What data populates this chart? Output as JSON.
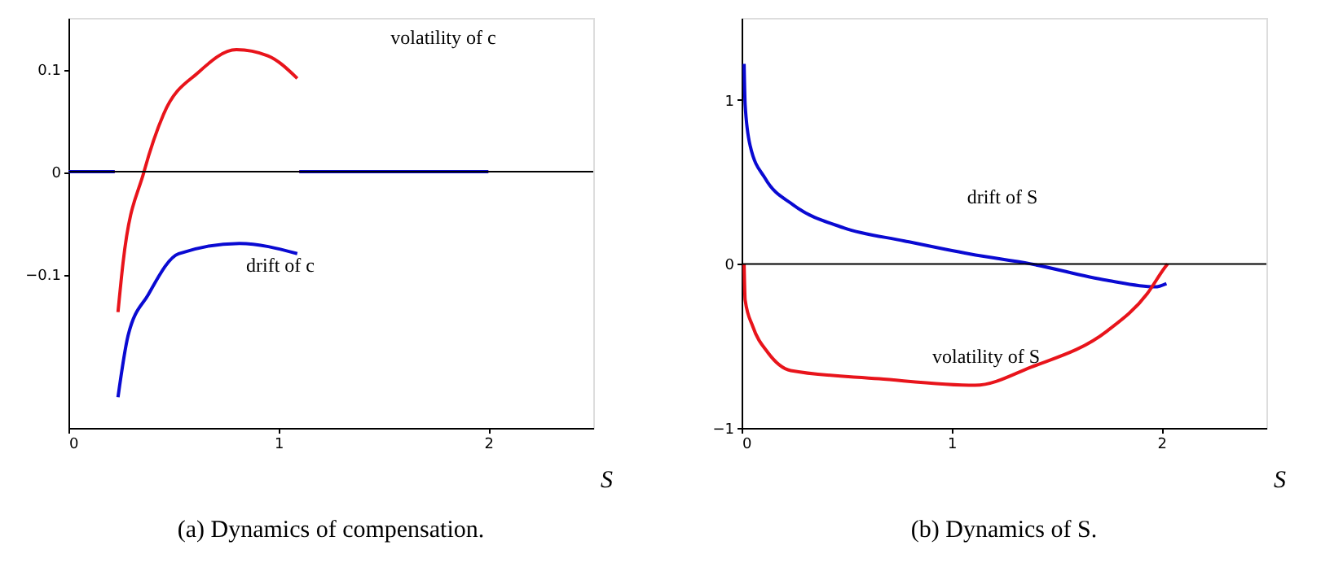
{
  "chart_data": [
    {
      "type": "line",
      "title": "(a) Dynamics of compensation.",
      "xlabel": "S",
      "xlim": [
        0,
        2.5
      ],
      "xticks": [
        0,
        1,
        2
      ],
      "ylim": [
        -0.25,
        0.15
      ],
      "yticks": [
        -0.1,
        0,
        0.1
      ],
      "grid": false,
      "legend": false,
      "series": [
        {
          "color": "#e8141b",
          "x": [
            0,
            0.22,
            null,
            0.236,
            0.26,
            0.36,
            0.453,
            0.62,
            0.8,
            0.95,
            1.09,
            null,
            1.1,
            2.0
          ],
          "values": [
            0,
            0,
            null,
            -0.137,
            -0.089,
            0,
            0.056,
            0.097,
            0.119,
            0.113,
            0.091,
            null,
            0,
            0
          ]
        },
        {
          "color": "#0a0ad2",
          "x": [
            0,
            0.22,
            null,
            0.236,
            0.284,
            0.38,
            0.525,
            0.815,
            1.09,
            null,
            1.1,
            2.0
          ],
          "values": [
            0,
            0,
            null,
            -0.22,
            -0.16,
            -0.12,
            -0.08,
            -0.07,
            -0.08,
            null,
            0,
            0
          ]
        }
      ],
      "ref_lines": [
        {
          "axis": "y",
          "value": 0,
          "color": "#000000"
        }
      ],
      "annotations": [
        "volatility of c",
        "drift of c"
      ]
    },
    {
      "type": "line",
      "title": "(b) Dynamics of S.",
      "xlabel": "S",
      "xlim": [
        0,
        2.5
      ],
      "xticks": [
        0,
        1,
        2
      ],
      "ylim": [
        -1,
        1.5
      ],
      "yticks": [
        -1,
        0,
        1
      ],
      "grid": false,
      "legend": false,
      "series": [
        {
          "color": "#0a0ad2",
          "x": [
            0.012,
            0.017,
            0.041,
            0.113,
            0.246,
            0.487,
            0.776,
            1.089,
            1.378,
            1.74,
            1.969,
            2.024
          ],
          "values": [
            1.22,
            0.97,
            0.72,
            0.52,
            0.36,
            0.22,
            0.14,
            0.06,
            0,
            -0.1,
            -0.14,
            -0.12
          ]
        },
        {
          "color": "#e8141b",
          "x": [
            0.012,
            0.017,
            0.053,
            0.125,
            0.234,
            0.655,
            1.113,
            1.378,
            1.74,
            1.933,
            2.017,
            2.029
          ],
          "values": [
            0,
            -0.22,
            -0.38,
            -0.54,
            -0.65,
            -0.7,
            -0.74,
            -0.63,
            -0.41,
            -0.18,
            -0.02,
            0
          ]
        }
      ],
      "ref_lines": [
        {
          "axis": "y",
          "value": 0,
          "color": "#000000"
        }
      ],
      "annotations": [
        "drift of S",
        "volatility of S"
      ]
    }
  ]
}
